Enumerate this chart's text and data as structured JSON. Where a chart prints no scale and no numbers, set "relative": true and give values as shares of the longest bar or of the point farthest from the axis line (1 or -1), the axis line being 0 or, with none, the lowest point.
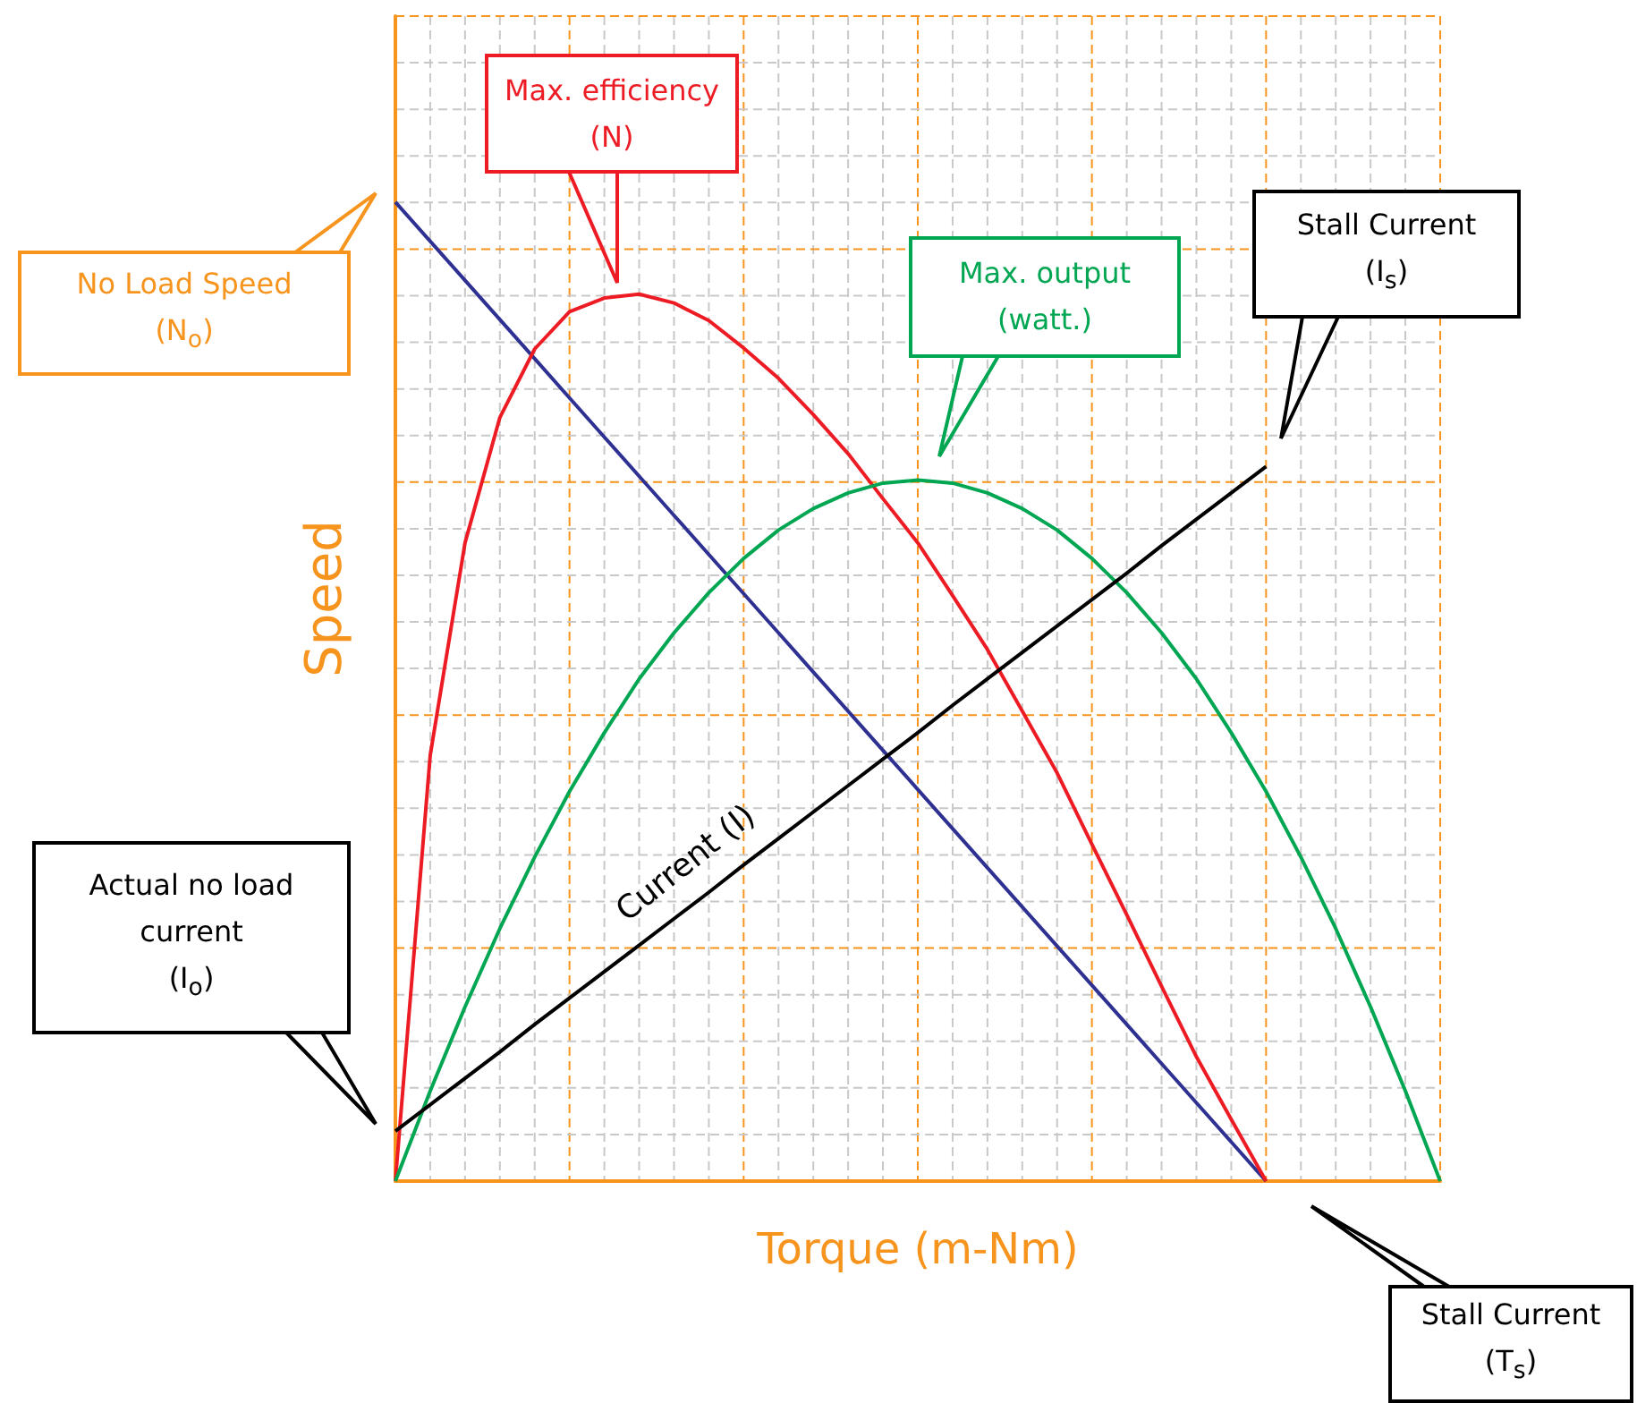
{
  "chart_data": {
    "type": "line",
    "relative": true,
    "xlabel": "Torque (m-Nm)",
    "ylabel": "Speed",
    "grid": true,
    "legend": false,
    "marker": "none",
    "line_style": "solid",
    "categories": [
      null,
      null,
      null,
      null,
      null,
      null,
      null,
      null,
      null,
      null,
      null,
      null,
      null,
      null,
      null,
      null,
      null,
      null,
      null,
      null,
      null,
      null,
      null,
      null,
      null,
      null,
      null,
      null,
      null,
      null,
      null
    ],
    "series": [
      {
        "color": "#2e3192",
        "values": [
          1,
          0.96,
          0.92,
          0.88,
          0.84,
          0.8,
          0.76,
          0.72,
          0.68,
          0.64,
          0.6,
          0.56,
          0.52,
          0.48,
          0.44,
          0.4,
          0.36,
          0.32,
          0.28,
          0.24,
          0.2,
          0.16,
          0.12,
          0.08,
          0.04,
          0,
          null,
          null,
          null,
          null,
          null
        ]
      },
      {
        "color": "#ed1c24",
        "values": [
          0,
          0.435,
          0.652,
          0.78,
          0.85,
          0.888,
          0.902,
          0.906,
          0.897,
          0.879,
          0.851,
          0.82,
          0.783,
          0.743,
          0.697,
          0.652,
          0.598,
          0.543,
          0.48,
          0.417,
          0.344,
          0.272,
          0.199,
          0.127,
          0.063,
          0,
          null,
          null,
          null,
          null,
          null
        ]
      },
      {
        "color": "#00a651",
        "values": [
          0,
          0.092,
          0.178,
          0.258,
          0.331,
          0.398,
          0.458,
          0.513,
          0.56,
          0.601,
          0.636,
          0.665,
          0.687,
          0.703,
          0.713,
          0.716,
          0.713,
          0.703,
          0.687,
          0.665,
          0.636,
          0.601,
          0.56,
          0.513,
          0.458,
          0.398,
          0.331,
          0.258,
          0.178,
          0.092,
          0
        ]
      },
      {
        "name": "Current (I)",
        "color": "#000000",
        "values": [
          0.051,
          0.078,
          0.105,
          0.132,
          0.16,
          0.187,
          0.214,
          0.241,
          0.268,
          0.295,
          0.323,
          0.35,
          0.377,
          0.404,
          0.431,
          0.458,
          0.486,
          0.513,
          0.54,
          0.567,
          0.594,
          0.621,
          0.649,
          0.676,
          0.703,
          0.73,
          null,
          null,
          null,
          null,
          null
        ]
      }
    ],
    "annotations": [
      "Max. efficiency (N)",
      "No Load Speed (N$_{o}$)",
      "Max. output (watt.)",
      "Stall Current (I$_{s}$)",
      "Actual no load current (I$_{o}$)",
      "Stall Current (T$_{s}$)"
    ]
  }
}
